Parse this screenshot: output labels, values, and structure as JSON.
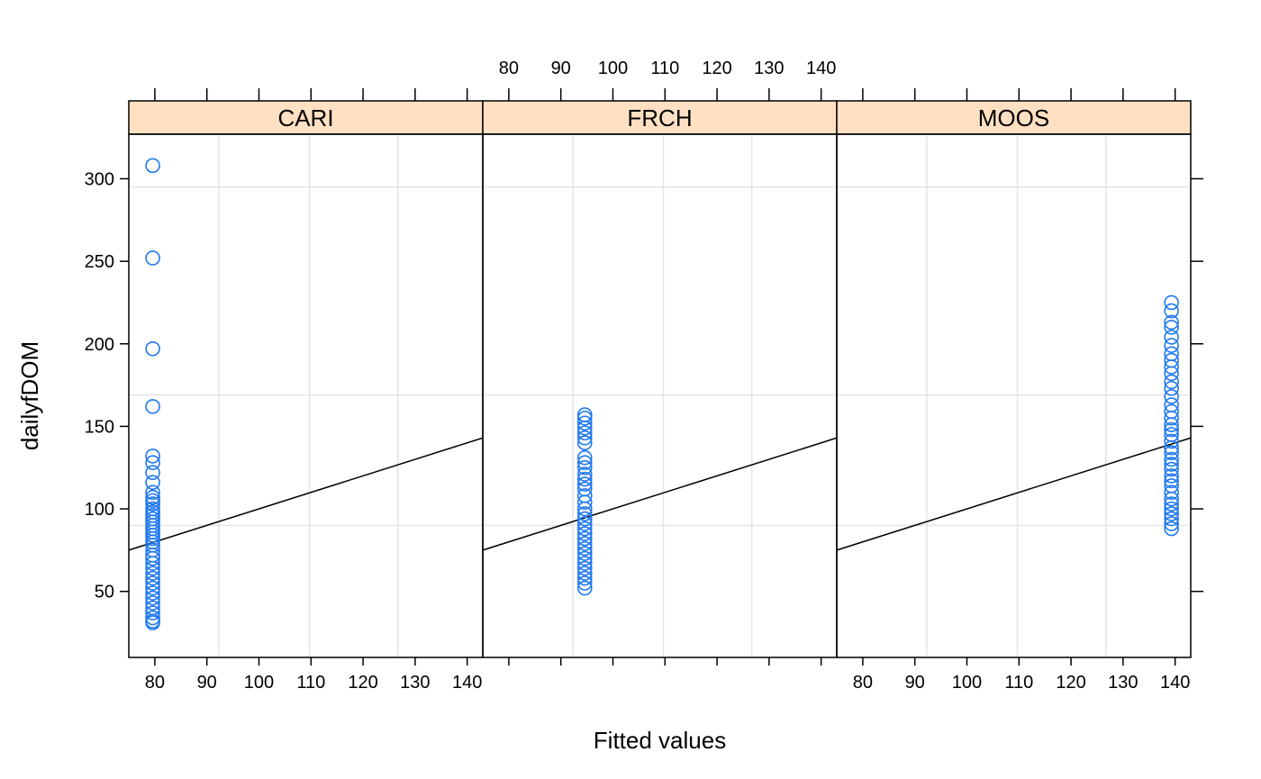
{
  "colors": {
    "point": "#1f78f0",
    "strip": "#ffe0c2",
    "grid": "#e4e4e4"
  },
  "chart_data": {
    "type": "scatter",
    "layout": "lattice, 3 panels in one row",
    "xlabel": "Fitted values",
    "ylabel": "dailyfDOM",
    "xlim": [
      75,
      143
    ],
    "ylim": [
      10,
      327
    ],
    "x_ticks": [
      80,
      90,
      100,
      110,
      120,
      130,
      140
    ],
    "y_ticks": [
      50,
      100,
      150,
      200,
      250,
      300
    ],
    "x_grid": [
      92.3,
      109.7,
      126.7
    ],
    "y_grid": [
      90,
      169,
      295
    ],
    "tick_label_position": "alternating: bottom for panels 1 and 3, top for panel 2",
    "grid": true,
    "legend": "none",
    "reference_line": {
      "intercept": 0,
      "slope": 1,
      "label": ""
    },
    "panels": [
      {
        "name": "CARI",
        "x": 79.6,
        "y": [
          308,
          252,
          197,
          162,
          132,
          128,
          122,
          116,
          110,
          107,
          105,
          103,
          100,
          98,
          96,
          94,
          92,
          90,
          88,
          86,
          84,
          82,
          80,
          78,
          75,
          72,
          70,
          67,
          64,
          61,
          58,
          55,
          52,
          49,
          46,
          43,
          40,
          37,
          34,
          32,
          31
        ]
      },
      {
        "name": "FRCH",
        "x": 94.6,
        "y": [
          157,
          155,
          152,
          149,
          146,
          143,
          140,
          131,
          128,
          125,
          121,
          118,
          115,
          112,
          108,
          104,
          100,
          97,
          94,
          91,
          88,
          85,
          82,
          79,
          76,
          73,
          70,
          67,
          64,
          61,
          58,
          55,
          52
        ]
      },
      {
        "name": "MOOS",
        "x": 139.3,
        "y": [
          225,
          220,
          213,
          210,
          204,
          199,
          194,
          190,
          186,
          182,
          177,
          173,
          168,
          163,
          159,
          155,
          151,
          148,
          145,
          141,
          137,
          134,
          130,
          127,
          124,
          120,
          117,
          114,
          110,
          106,
          103,
          100,
          97,
          94,
          91,
          88
        ]
      }
    ]
  }
}
